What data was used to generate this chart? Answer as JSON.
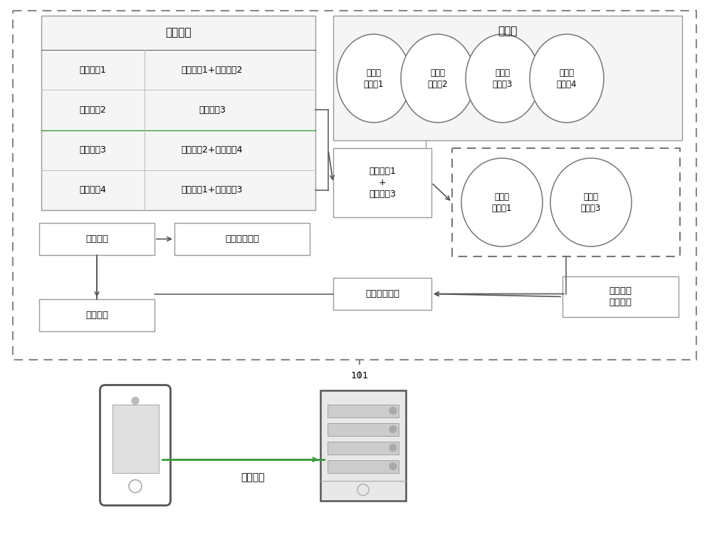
{
  "bg_color": "#ffffff",
  "table_title": "匹配关系",
  "table_rows": [
    [
      "处理类别1",
      "参数标评1+参数标评2"
    ],
    [
      "处理类别2",
      "参数标评3"
    ],
    [
      "处理类别3",
      "参数标评2+参数标评4"
    ],
    [
      "处理类别4",
      "参数标评1+参数标评3"
    ]
  ],
  "param_db_label": "参数库",
  "ellipses_top": [
    "类别处\n理参数1",
    "类别处\n理参数2",
    "类别处\n理参数3",
    "类别处\n理参数4"
  ],
  "param_id_box": "参数标评1\n+\n参数标评3",
  "ellipses_bottom": [
    "类别处\n理参数1",
    "类别处\n理参数3"
  ],
  "process_req_label": "处理请求",
  "target_type_label": "目标处理类型",
  "num_func_label": "数值处理函数",
  "target_val_label": "目标数值",
  "init_func_label": "初始数值\n处理函数",
  "label_101": "101",
  "process_req_bottom": "处理请求",
  "edge_color": "#666666",
  "dashed_color": "#888888",
  "green_color": "#3a9a3a",
  "arrow_color": "#555555"
}
